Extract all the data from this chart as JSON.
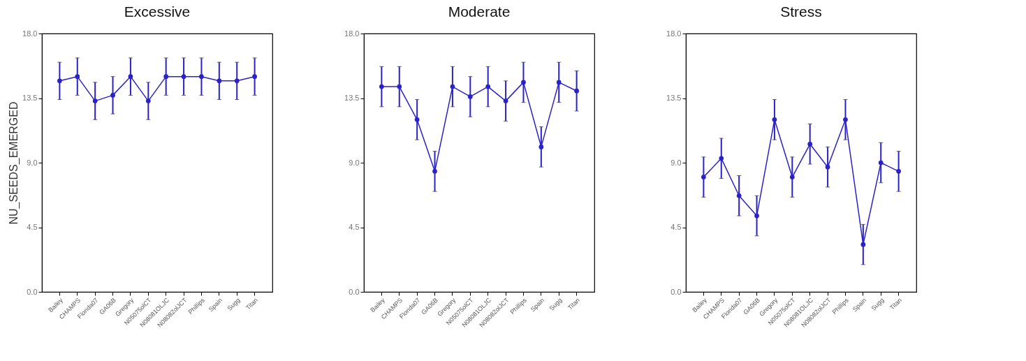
{
  "chart_data": [
    {
      "type": "line",
      "title": "Excessive",
      "ylabel": "NU_SEEDS_EMERGED",
      "categories": [
        "Bailey",
        "CHAMPS",
        "Florida07",
        "GA06B",
        "Gregory",
        "N05075olCT",
        "N08081OLJC",
        "N08082olJCT",
        "Phillips",
        "Spain",
        "Sugg",
        "Titan"
      ],
      "series": [
        {
          "color": "#2a22c8",
          "values": [
            14.7,
            15.0,
            13.3,
            13.7,
            15.0,
            13.3,
            15.0,
            15.0,
            15.0,
            14.7,
            14.7,
            15.0
          ],
          "errors": [
            1.3,
            1.3,
            1.3,
            1.3,
            1.3,
            1.3,
            1.3,
            1.3,
            1.3,
            1.3,
            1.3,
            1.3
          ]
        }
      ],
      "ylim": [
        0,
        18
      ],
      "yticks": [
        {
          "value": 0,
          "label": "0.0"
        },
        {
          "value": 4.5,
          "label": "4.5"
        },
        {
          "value": 9,
          "label": "9.0"
        },
        {
          "value": 13.5,
          "label": "13.5"
        },
        {
          "value": 18,
          "label": "18.0"
        }
      ],
      "marker": "circle",
      "line_style": "solid",
      "grid": false
    },
    {
      "type": "line",
      "title": "Moderate",
      "categories": [
        "Bailey",
        "CHAMPS",
        "Florida07",
        "GA06B",
        "Gregory",
        "N05075olCT",
        "N08081OLJC",
        "N08082olJCT",
        "Phillips",
        "Spain",
        "Sugg",
        "Titan"
      ],
      "series": [
        {
          "color": "#2a22c8",
          "values": [
            14.3,
            14.3,
            12.0,
            8.4,
            14.3,
            13.6,
            14.3,
            13.3,
            14.6,
            10.1,
            14.6,
            14.0
          ],
          "errors": [
            1.4,
            1.4,
            1.4,
            1.4,
            1.4,
            1.4,
            1.4,
            1.4,
            1.4,
            1.4,
            1.4,
            1.4
          ]
        }
      ],
      "ylim": [
        0,
        18
      ],
      "yticks": [
        {
          "value": 0,
          "label": "0.0"
        },
        {
          "value": 4.5,
          "label": "4.5"
        },
        {
          "value": 9,
          "label": "9.0"
        },
        {
          "value": 13.5,
          "label": "13.5"
        },
        {
          "value": 18,
          "label": "18.0"
        }
      ],
      "marker": "circle",
      "line_style": "solid",
      "grid": false
    },
    {
      "type": "line",
      "title": "Stress",
      "categories": [
        "Bailey",
        "CHAMPS",
        "Florida07",
        "GA06B",
        "Gregory",
        "N05075olCT",
        "N08081OLJC",
        "N08082olJCT",
        "Phillips",
        "Spain",
        "Sugg",
        "Titan"
      ],
      "series": [
        {
          "color": "#2a22c8",
          "values": [
            8.0,
            9.3,
            6.7,
            5.3,
            12.0,
            8.0,
            10.3,
            8.7,
            12.0,
            3.3,
            9.0,
            8.4
          ],
          "errors": [
            1.4,
            1.4,
            1.4,
            1.4,
            1.4,
            1.4,
            1.4,
            1.4,
            1.4,
            1.4,
            1.4,
            1.4
          ]
        }
      ],
      "ylim": [
        0,
        18
      ],
      "yticks": [
        {
          "value": 0,
          "label": "0.0"
        },
        {
          "value": 4.5,
          "label": "4.5"
        },
        {
          "value": 9,
          "label": "9.0"
        },
        {
          "value": 13.5,
          "label": "13.5"
        },
        {
          "value": 18,
          "label": "18.0"
        }
      ],
      "marker": "circle",
      "line_style": "solid",
      "grid": false
    }
  ]
}
